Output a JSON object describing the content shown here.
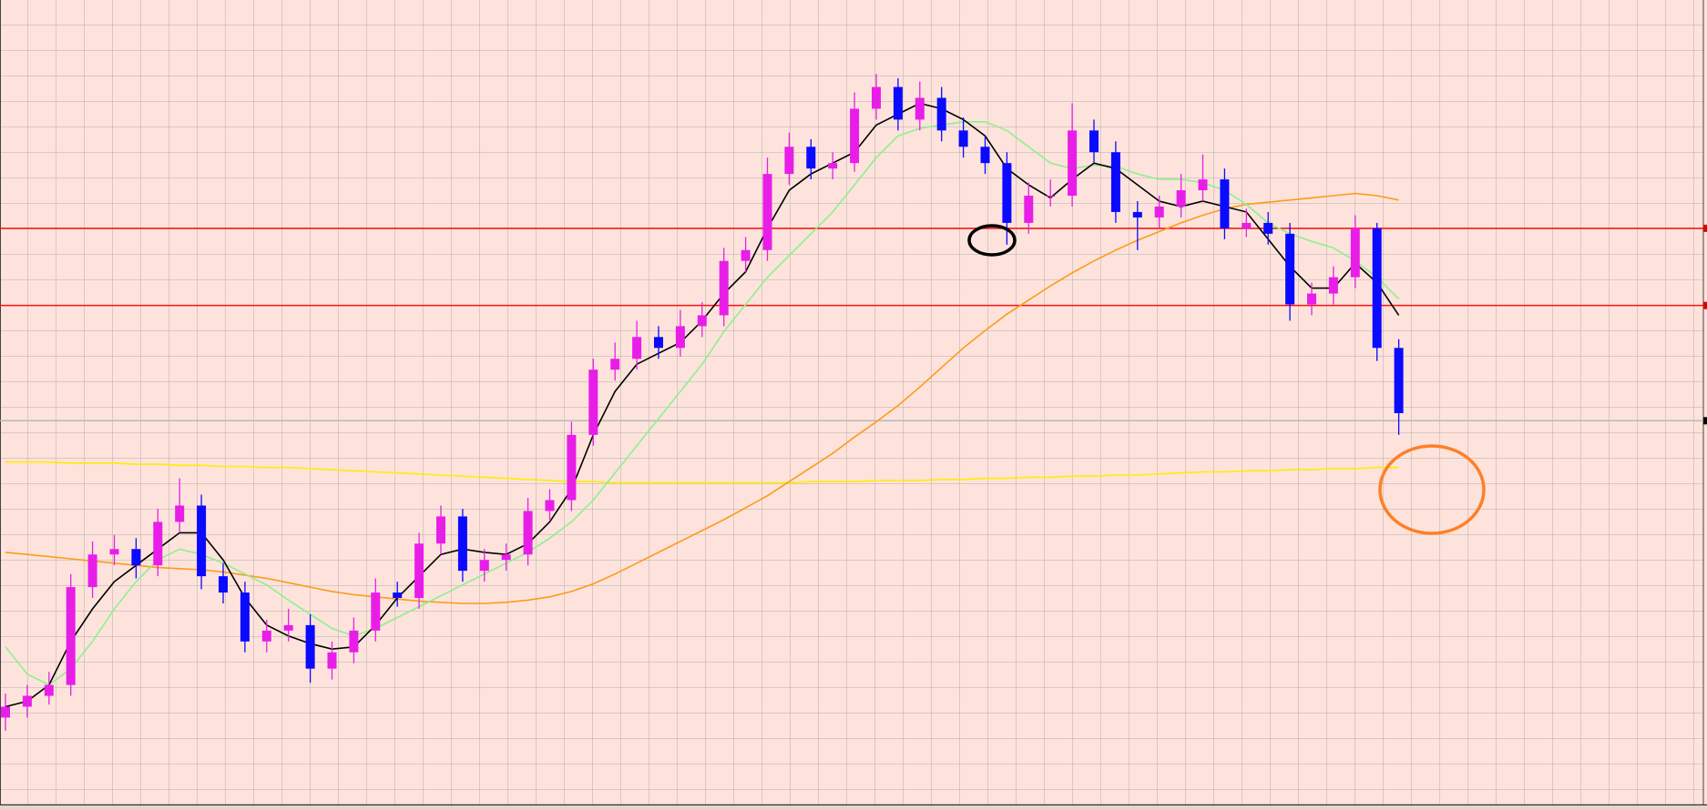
{
  "chart_data": {
    "type": "candlestick",
    "ylim": [
      0,
      740
    ],
    "up_color": "#e81ee8",
    "down_color": "#0a0aff",
    "open": [
      80,
      90,
      100,
      110,
      200,
      230,
      235,
      220,
      260,
      275,
      210,
      195,
      150,
      160,
      165,
      125,
      140,
      160,
      195,
      190,
      240,
      265,
      215,
      225,
      230,
      270,
      280,
      340,
      400,
      410,
      430,
      420,
      440,
      450,
      500,
      510,
      580,
      605,
      585,
      590,
      640,
      660,
      630,
      650,
      620,
      605,
      590,
      535,
      560,
      560,
      620,
      600,
      545,
      540,
      550,
      565,
      575,
      530,
      535,
      525,
      460,
      470,
      485,
      530,
      420
    ],
    "high": [
      102,
      110,
      122,
      212,
      242,
      248,
      245,
      272,
      300,
      285,
      222,
      205,
      170,
      180,
      175,
      150,
      172,
      208,
      205,
      250,
      275,
      272,
      235,
      240,
      282,
      290,
      352,
      410,
      425,
      445,
      440,
      455,
      462,
      512,
      522,
      595,
      618,
      612,
      600,
      655,
      672,
      668,
      665,
      660,
      632,
      615,
      600,
      572,
      575,
      645,
      630,
      610,
      555,
      560,
      580,
      598,
      585,
      548,
      545,
      535,
      480,
      495,
      542,
      535,
      428
    ],
    "low": [
      68,
      80,
      92,
      100,
      190,
      220,
      208,
      210,
      250,
      198,
      185,
      140,
      140,
      150,
      112,
      115,
      130,
      150,
      182,
      180,
      230,
      205,
      205,
      215,
      220,
      262,
      270,
      330,
      390,
      400,
      410,
      412,
      430,
      440,
      490,
      500,
      570,
      575,
      575,
      582,
      630,
      620,
      620,
      610,
      595,
      580,
      515,
      525,
      550,
      550,
      590,
      535,
      510,
      530,
      540,
      555,
      520,
      522,
      515,
      445,
      450,
      460,
      475,
      408,
      340
    ],
    "close": [
      90,
      100,
      110,
      200,
      230,
      235,
      220,
      260,
      275,
      210,
      195,
      150,
      160,
      165,
      125,
      140,
      160,
      195,
      190,
      240,
      265,
      215,
      225,
      230,
      270,
      280,
      340,
      400,
      410,
      430,
      420,
      440,
      450,
      500,
      510,
      580,
      605,
      585,
      590,
      640,
      660,
      630,
      650,
      620,
      605,
      590,
      535,
      560,
      560,
      620,
      600,
      545,
      540,
      550,
      565,
      575,
      530,
      535,
      525,
      460,
      470,
      485,
      530,
      420,
      360
    ],
    "series": [
      {
        "color": "#ffee00",
        "values": [
          315,
          315,
          315,
          314,
          314,
          314,
          313,
          313,
          312,
          312,
          311,
          311,
          310,
          310,
          309,
          308,
          307,
          306,
          305,
          304,
          303,
          302,
          301,
          300,
          299,
          298,
          297,
          297,
          296,
          296,
          296,
          296,
          296,
          296,
          296,
          296,
          296,
          297,
          297,
          297,
          298,
          298,
          298,
          299,
          299,
          300,
          300,
          301,
          301,
          302,
          302,
          303,
          303,
          304,
          305,
          306,
          306,
          307,
          307,
          308,
          308,
          309,
          309,
          310,
          310
        ]
      },
      {
        "color": "#ff9a1a",
        "values": [
          232,
          230,
          228,
          226,
          224,
          222,
          220,
          218,
          217,
          216,
          214,
          211,
          208,
          204,
          200,
          196,
          193,
          191,
          189,
          187,
          186,
          185,
          185,
          186,
          188,
          191,
          196,
          203,
          212,
          222,
          232,
          242,
          252,
          262,
          273,
          284,
          297,
          310,
          323,
          338,
          352,
          367,
          384,
          402,
          420,
          436,
          451,
          464,
          477,
          489,
          500,
          510,
          519,
          527,
          535,
          542,
          548,
          552,
          554,
          556,
          558,
          560,
          562,
          560,
          556
        ]
      },
      {
        "color": "#8ef08e",
        "values": [
          145,
          120,
          110,
          125,
          150,
          180,
          205,
          225,
          235,
          230,
          222,
          212,
          202,
          188,
          175,
          162,
          155,
          162,
          172,
          182,
          192,
          202,
          212,
          222,
          232,
          245,
          260,
          280,
          305,
          330,
          355,
          380,
          405,
          435,
          460,
          485,
          505,
          525,
          545,
          570,
          595,
          615,
          622,
          625,
          628,
          628,
          620,
          605,
          590,
          585,
          588,
          587,
          580,
          575,
          575,
          572,
          565,
          552,
          535,
          525,
          518,
          512,
          500,
          485,
          465
        ]
      },
      {
        "color": "#000000",
        "values": [
          90,
          95,
          110,
          150,
          180,
          205,
          220,
          235,
          250,
          250,
          225,
          190,
          165,
          155,
          148,
          143,
          145,
          165,
          190,
          210,
          230,
          235,
          232,
          230,
          240,
          260,
          290,
          340,
          380,
          405,
          415,
          425,
          445,
          470,
          490,
          530,
          565,
          580,
          590,
          600,
          625,
          635,
          645,
          640,
          630,
          615,
          585,
          570,
          558,
          575,
          590,
          585,
          570,
          555,
          550,
          555,
          550,
          545,
          520,
          495,
          475,
          475,
          498,
          480,
          450
        ]
      }
    ],
    "horizontal_lines": [
      {
        "value": 530,
        "color": "#ff1010"
      },
      {
        "value": 459,
        "color": "#ff1010"
      },
      {
        "value": 353,
        "color": "#b8b8b8"
      }
    ]
  }
}
